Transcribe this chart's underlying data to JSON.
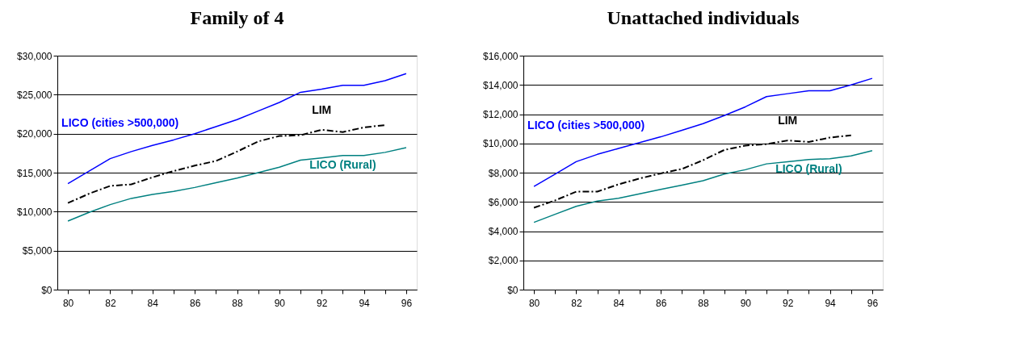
{
  "chart_data": [
    {
      "type": "line",
      "title": "Family of 4",
      "categories": [
        "80",
        null,
        "82",
        null,
        "84",
        null,
        "86",
        null,
        "88",
        null,
        "90",
        null,
        "92",
        null,
        "94",
        null,
        "96"
      ],
      "ylim": [
        0,
        30000
      ],
      "yticks": [
        {
          "value": 0,
          "label": "$0"
        },
        {
          "value": 5000,
          "label": "$5,000"
        },
        {
          "value": 10000,
          "label": "$10,000"
        },
        {
          "value": 15000,
          "label": "$15,000"
        },
        {
          "value": 20000,
          "label": "$20,000"
        },
        {
          "value": 25000,
          "label": "$25,000"
        },
        {
          "value": 30000,
          "label": "$30,000"
        }
      ],
      "grid": "y",
      "marker": "none",
      "series": [
        {
          "name": "LICO (cities >500,000)",
          "color": "#0000ff",
          "line_style": "solid",
          "values": [
            13600,
            15200,
            16800,
            17700,
            18500,
            19200,
            20000,
            20900,
            21800,
            22900,
            24000,
            25300,
            25700,
            26200,
            26200,
            26800,
            27700
          ]
        },
        {
          "name": "LIM",
          "color": "#000000",
          "line_style": "dashed",
          "values": [
            11100,
            12300,
            13300,
            13500,
            14400,
            15200,
            15900,
            16500,
            17700,
            19000,
            19700,
            19800,
            20500,
            20200,
            20800,
            21100,
            null
          ]
        },
        {
          "name": "LICO (Rural)",
          "color": "#008080",
          "line_style": "solid",
          "values": [
            8800,
            9900,
            10900,
            11700,
            12200,
            12600,
            13100,
            13700,
            14300,
            15000,
            15700,
            16600,
            16900,
            17200,
            17200,
            17600,
            18200
          ]
        }
      ]
    },
    {
      "type": "line",
      "title": "Unattached individuals",
      "categories": [
        "80",
        null,
        "82",
        null,
        "84",
        null,
        "86",
        null,
        "88",
        null,
        "90",
        null,
        "92",
        null,
        "94",
        null,
        "96"
      ],
      "ylim": [
        0,
        16000
      ],
      "yticks": [
        {
          "value": 0,
          "label": "$0"
        },
        {
          "value": 2000,
          "label": "$2,000"
        },
        {
          "value": 4000,
          "label": "$4,000"
        },
        {
          "value": 6000,
          "label": "$6,000"
        },
        {
          "value": 8000,
          "label": "$8,000"
        },
        {
          "value": 10000,
          "label": "$10,000"
        },
        {
          "value": 12000,
          "label": "$12,000"
        },
        {
          "value": 14000,
          "label": "$14,000"
        },
        {
          "value": 16000,
          "label": "$16,000"
        }
      ],
      "grid": "y",
      "marker": "none",
      "series": [
        {
          "name": "LICO (cities >500,000)",
          "color": "#0000ff",
          "line_style": "solid",
          "values": [
            7050,
            7900,
            8750,
            9250,
            9650,
            10050,
            10450,
            10900,
            11350,
            11900,
            12500,
            13200,
            13400,
            13600,
            13600,
            14000,
            14450
          ]
        },
        {
          "name": "LIM",
          "color": "#000000",
          "line_style": "dashed",
          "values": [
            5600,
            6100,
            6700,
            6700,
            7200,
            7600,
            7950,
            8250,
            8850,
            9550,
            9850,
            9950,
            10200,
            10100,
            10400,
            10550,
            null
          ]
        },
        {
          "name": "LICO (Rural)",
          "color": "#008080",
          "line_style": "solid",
          "values": [
            4600,
            5150,
            5700,
            6050,
            6250,
            6550,
            6850,
            7150,
            7450,
            7900,
            8200,
            8600,
            8750,
            8900,
            8950,
            9150,
            9500
          ]
        }
      ]
    }
  ]
}
